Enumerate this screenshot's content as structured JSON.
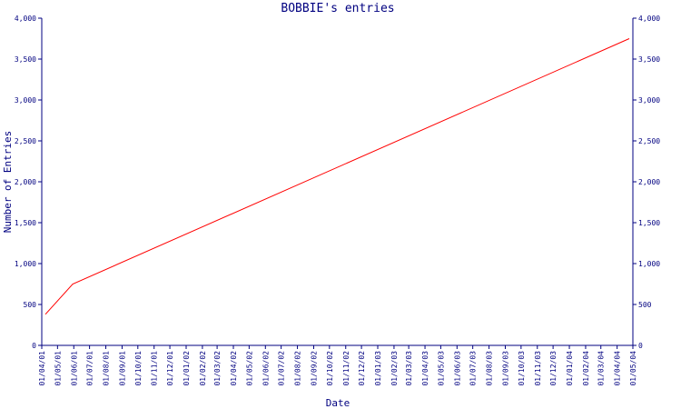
{
  "chart_data": {
    "type": "line",
    "title": "BOBBIE's entries",
    "xlabel": "Date",
    "ylabel": "Number of Entries",
    "x_ticks": [
      "01/04/01",
      "01/05/01",
      "01/06/01",
      "01/07/01",
      "01/08/01",
      "01/09/01",
      "01/10/01",
      "01/11/01",
      "01/12/01",
      "01/01/02",
      "01/02/02",
      "01/03/02",
      "01/04/02",
      "01/05/02",
      "01/06/02",
      "01/07/02",
      "01/08/02",
      "01/09/02",
      "01/10/02",
      "01/11/02",
      "01/12/02",
      "01/01/03",
      "01/02/03",
      "01/03/03",
      "01/04/03",
      "01/05/03",
      "01/06/03",
      "01/07/03",
      "01/08/03",
      "01/09/03",
      "01/10/03",
      "01/11/03",
      "01/12/03",
      "01/01/04",
      "01/02/04",
      "01/03/04",
      "01/04/04",
      "01/05/04"
    ],
    "y_ticks": [
      "0",
      "500",
      "1,000",
      "1,500",
      "2,000",
      "2,500",
      "3,000",
      "3,500",
      "4,000"
    ],
    "ylim": [
      0,
      4000
    ],
    "xlim": [
      "2001-04-01",
      "2004-05-01"
    ],
    "series": [
      {
        "color": "#ff0000",
        "points": [
          {
            "x": "2001-04-08",
            "y": 380
          },
          {
            "x": "2001-05-30",
            "y": 750
          },
          {
            "x": "2004-04-24",
            "y": 3750
          }
        ]
      }
    ],
    "grid": false,
    "right_axis": true,
    "axis_color": "#000080"
  }
}
